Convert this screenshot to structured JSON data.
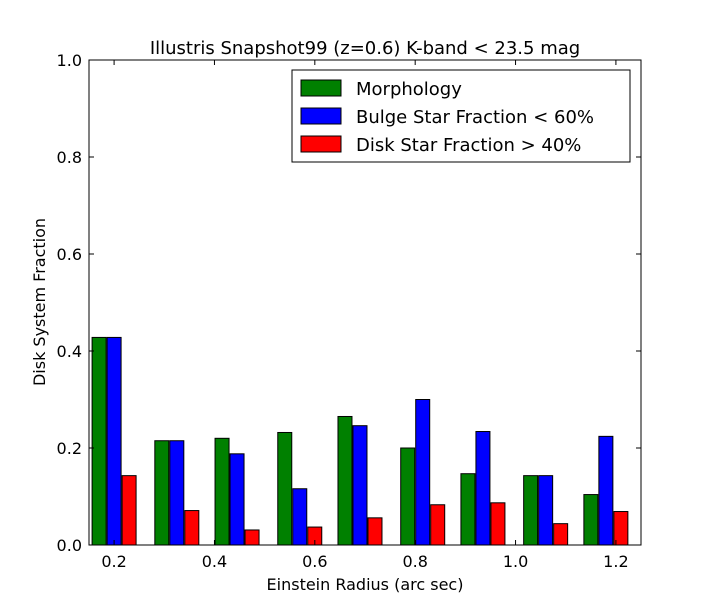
{
  "chart_data": {
    "type": "bar",
    "title": "Illustris Snapshot99 (z=0.6) K-band < 23.5 mag",
    "xlabel": "Einstein Radius (arc sec)",
    "ylabel": "Disk System Fraction",
    "xlim": [
      0.15,
      1.25
    ],
    "ylim": [
      0.0,
      1.0
    ],
    "xticks": [
      "0.2",
      "0.4",
      "0.6",
      "0.8",
      "1.0",
      "1.2"
    ],
    "xtick_values": [
      0.2,
      0.4,
      0.6,
      0.8,
      1.0,
      1.2
    ],
    "yticks": [
      "0.0",
      "0.2",
      "0.4",
      "0.6",
      "0.8",
      "1.0"
    ],
    "ytick_values": [
      0.0,
      0.2,
      0.4,
      0.6,
      0.8,
      1.0
    ],
    "grid": false,
    "legend_position": "top-right",
    "x": [
      0.2,
      0.325,
      0.445,
      0.57,
      0.69,
      0.815,
      0.935,
      1.06,
      1.18
    ],
    "series": [
      {
        "name": "Morphology",
        "color": "#008000",
        "values": [
          0.428,
          0.215,
          0.22,
          0.232,
          0.265,
          0.2,
          0.147,
          0.143,
          0.104
        ]
      },
      {
        "name": "Bulge Star Fraction < 60%",
        "color": "#0000ff",
        "values": [
          0.428,
          0.215,
          0.188,
          0.116,
          0.246,
          0.3,
          0.234,
          0.143,
          0.224
        ]
      },
      {
        "name": "Disk Star Fraction > 40%",
        "color": "#ff0000",
        "values": [
          0.143,
          0.071,
          0.031,
          0.037,
          0.056,
          0.083,
          0.087,
          0.044,
          0.069
        ]
      }
    ]
  }
}
